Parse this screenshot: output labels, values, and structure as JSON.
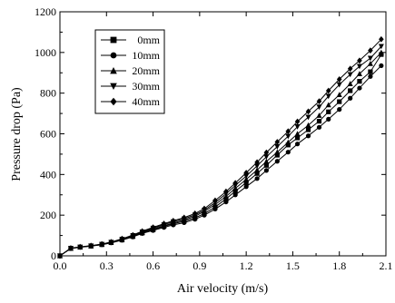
{
  "chart_data": {
    "type": "line",
    "title": "",
    "xlabel": "Air velocity (m/s)",
    "ylabel": "Pressure drop (Pa)",
    "xlim": [
      0.0,
      2.1
    ],
    "ylim": [
      0,
      1200
    ],
    "xticks": [
      0.0,
      0.3,
      0.6,
      0.9,
      1.2,
      1.5,
      1.8,
      2.1
    ],
    "xtick_labels": [
      "0.0",
      "0.3",
      "0.6",
      "0.9",
      "1.2",
      "1.5",
      "1.8",
      "2.1"
    ],
    "yticks": [
      0,
      200,
      400,
      600,
      800,
      1000,
      1200
    ],
    "ytick_labels": [
      "0",
      "200",
      "400",
      "600",
      "800",
      "1000",
      "1200"
    ],
    "grid": false,
    "legend_position": "top-left",
    "x": [
      0.0,
      0.07,
      0.13,
      0.2,
      0.27,
      0.33,
      0.4,
      0.47,
      0.53,
      0.6,
      0.67,
      0.73,
      0.8,
      0.87,
      0.93,
      1.0,
      1.07,
      1.13,
      1.2,
      1.27,
      1.33,
      1.4,
      1.47,
      1.53,
      1.6,
      1.67,
      1.73,
      1.8,
      1.87,
      1.93,
      2.0,
      2.07
    ],
    "series": [
      {
        "name": "0mm",
        "marker": "square",
        "values": [
          0,
          37,
          43,
          48,
          55,
          65,
          78,
          95,
          112,
          128,
          145,
          158,
          170,
          187,
          208,
          240,
          280,
          318,
          360,
          405,
          445,
          495,
          545,
          580,
          620,
          662,
          708,
          758,
          812,
          858,
          905,
          990
        ]
      },
      {
        "name": "10mm",
        "marker": "circle",
        "values": [
          0,
          38,
          43,
          49,
          55,
          64,
          77,
          93,
          110,
          125,
          140,
          152,
          163,
          180,
          200,
          230,
          265,
          300,
          340,
          380,
          420,
          465,
          510,
          550,
          590,
          632,
          672,
          720,
          775,
          825,
          882,
          935
        ]
      },
      {
        "name": "20mm",
        "marker": "triangle-up",
        "values": [
          0,
          36,
          42,
          48,
          56,
          66,
          80,
          97,
          114,
          131,
          148,
          162,
          176,
          195,
          218,
          252,
          292,
          332,
          376,
          422,
          464,
          510,
          558,
          600,
          642,
          690,
          742,
          792,
          846,
          895,
          945,
          1000
        ]
      },
      {
        "name": "30mm",
        "marker": "triangle-down",
        "values": [
          0,
          37,
          43,
          49,
          57,
          67,
          82,
          100,
          118,
          136,
          153,
          168,
          182,
          201,
          225,
          262,
          305,
          346,
          392,
          442,
          487,
          537,
          588,
          635,
          682,
          732,
          785,
          842,
          892,
          932,
          972,
          1030
        ]
      },
      {
        "name": "40mm",
        "marker": "diamond",
        "values": [
          0,
          38,
          44,
          50,
          58,
          68,
          84,
          102,
          121,
          140,
          158,
          172,
          188,
          208,
          232,
          272,
          316,
          358,
          408,
          460,
          508,
          560,
          612,
          660,
          710,
          760,
          812,
          868,
          920,
          960,
          1010,
          1065
        ]
      }
    ]
  }
}
